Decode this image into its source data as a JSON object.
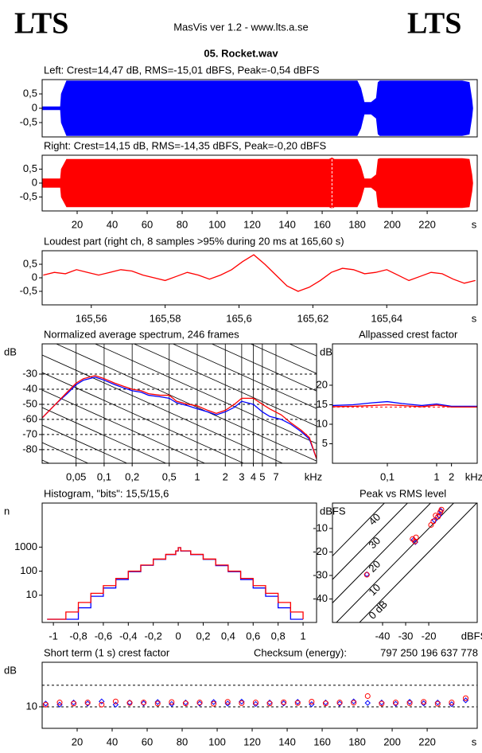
{
  "header": {
    "logo_left": "LTS",
    "app": "MasVis ver 1.2 - www.lts.a.se",
    "logo_right": "LTS",
    "file": "05. Rocket.wav"
  },
  "chart_data": [
    {
      "type": "envelope",
      "title": "Left: Crest=14,47 dB, RMS=-15,01 dBFS, Peak=-0,54 dBFS",
      "xlim": [
        0,
        248.6
      ],
      "ylim": [
        -1,
        1
      ],
      "yticks": [
        {
          "value": 0.5,
          "label": "0,5"
        },
        0,
        {
          "value": -0.5,
          "label": "-0,5"
        }
      ],
      "series": [
        {
          "color": "#0000ff",
          "x": [
            0,
            10.5,
            11,
            14,
            180,
            182,
            184,
            188,
            191,
            192,
            193,
            240,
            244,
            245.5,
            246
          ],
          "values": [
            0.05,
            0.05,
            0.5,
            0.95,
            0.95,
            0.7,
            0.2,
            0.2,
            0.35,
            0.9,
            0.95,
            0.95,
            0.9,
            0.3,
            0
          ]
        }
      ]
    },
    {
      "type": "envelope",
      "title": "Right: Crest=14,15 dB, RMS=-14,35 dBFS, Peak=-0,20 dBFS",
      "xlim": [
        0,
        248.6
      ],
      "ylim": [
        -1,
        1
      ],
      "yticks": [
        {
          "value": 0.5,
          "label": "0,5"
        },
        0,
        {
          "value": -0.5,
          "label": "-0,5"
        }
      ],
      "xticks": [
        20,
        40,
        60,
        80,
        100,
        120,
        140,
        160,
        180,
        200,
        220
      ],
      "x_unit": "s",
      "marker": 165.6,
      "series": [
        {
          "color": "#ff0000",
          "x": [
            0,
            10.5,
            11,
            14,
            164,
            165.6,
            167,
            180,
            182,
            184,
            188,
            191,
            192,
            193,
            240,
            244,
            245.5,
            246
          ],
          "values": [
            0.15,
            0.15,
            0.5,
            0.85,
            0.85,
            0.9,
            0.85,
            0.85,
            0.6,
            0.15,
            0.15,
            0.3,
            0.85,
            0.88,
            0.88,
            0.85,
            0.3,
            0
          ]
        }
      ]
    },
    {
      "type": "line",
      "title": "Loudest part (right ch, 8 samples >95% during 20 ms at 165,60 s)",
      "xlim": [
        165.5467,
        165.6645
      ],
      "ylim": [
        -1,
        1
      ],
      "yticks": [
        {
          "value": 0.5,
          "label": "0,5"
        },
        0,
        {
          "value": -0.5,
          "label": "-0,5"
        }
      ],
      "xticks": [
        {
          "value": 165.56,
          "label": "165,56"
        },
        {
          "value": 165.58,
          "label": "165,58"
        },
        {
          "value": 165.6,
          "label": "165,6"
        },
        {
          "value": 165.62,
          "label": "165,62"
        },
        {
          "value": 165.64,
          "label": "165,64"
        }
      ],
      "x_unit": "s",
      "series": [
        {
          "color": "#ff0000",
          "x": [
            165.547,
            165.55,
            165.553,
            165.556,
            165.559,
            165.562,
            165.565,
            165.568,
            165.571,
            165.574,
            165.577,
            165.58,
            165.583,
            165.586,
            165.589,
            165.592,
            165.595,
            165.598,
            165.601,
            165.604,
            165.607,
            165.61,
            165.613,
            165.616,
            165.619,
            165.622,
            165.625,
            165.628,
            165.631,
            165.634,
            165.637,
            165.64,
            165.643,
            165.646,
            165.649,
            165.652,
            165.655,
            165.658,
            165.661,
            165.664
          ],
          "values": [
            0.1,
            0.2,
            0.15,
            0.3,
            0.2,
            0.1,
            0.2,
            0.3,
            0.25,
            0.1,
            0,
            -0.1,
            0.05,
            0.2,
            0.1,
            -0.05,
            0.1,
            0.3,
            0.6,
            0.85,
            0.5,
            0.1,
            -0.3,
            -0.5,
            -0.35,
            -0.1,
            0.2,
            0.35,
            0.3,
            0.15,
            0.2,
            0.3,
            0.1,
            -0.1,
            0.05,
            0.2,
            0.15,
            -0.05,
            -0.2,
            -0.1
          ]
        }
      ]
    },
    {
      "type": "line",
      "title": "Normalized average spectrum, 246 frames",
      "y_label": "dB",
      "x_unit": "kHz",
      "xscale": "log",
      "xlim": [
        0.0216,
        19.1
      ],
      "ylim": [
        -89,
        -10
      ],
      "grid_x": true,
      "grid_y": "dashed",
      "diagonals": true,
      "yticks": [
        -30,
        -40,
        -50,
        -60,
        -70,
        -80
      ],
      "xticks": [
        {
          "value": 0.05,
          "label": "0,05"
        },
        {
          "value": 0.1,
          "label": "0,1"
        },
        {
          "value": 0.2,
          "label": "0,2"
        },
        {
          "value": 0.5,
          "label": "0,5"
        },
        1,
        2,
        3,
        4,
        5,
        7
      ],
      "series": [
        {
          "color": "#0000ff",
          "x": [
            0.0216,
            0.03,
            0.04,
            0.05,
            0.06,
            0.07,
            0.08,
            0.1,
            0.13,
            0.16,
            0.2,
            0.25,
            0.3,
            0.4,
            0.5,
            0.6,
            0.8,
            1,
            1.3,
            1.6,
            2,
            2.5,
            3,
            4,
            5,
            6,
            8,
            10,
            13,
            16,
            19.1
          ],
          "values": [
            -59,
            -50,
            -43,
            -37,
            -34,
            -33,
            -32,
            -34,
            -37,
            -39,
            -41,
            -42,
            -44,
            -45,
            -46,
            -49,
            -51,
            -53,
            -55,
            -57,
            -55,
            -52,
            -48,
            -50,
            -55,
            -58,
            -60,
            -63,
            -68,
            -73,
            -86
          ]
        },
        {
          "color": "#ff0000",
          "x": [
            0.0216,
            0.03,
            0.04,
            0.05,
            0.06,
            0.07,
            0.08,
            0.1,
            0.13,
            0.16,
            0.2,
            0.25,
            0.3,
            0.4,
            0.5,
            0.6,
            0.8,
            1,
            1.3,
            1.6,
            2,
            2.5,
            3,
            4,
            5,
            6,
            8,
            10,
            13,
            16,
            19.1
          ],
          "values": [
            -59,
            -50,
            -42,
            -36,
            -33,
            -32,
            -31,
            -33,
            -36,
            -38,
            -40,
            -41,
            -43,
            -44,
            -44,
            -48,
            -50,
            -51,
            -54,
            -56,
            -54,
            -50,
            -46,
            -46,
            -50,
            -53,
            -57,
            -62,
            -67,
            -72,
            -86
          ]
        }
      ]
    },
    {
      "type": "line",
      "title": "Allpassed crest factor",
      "y_label": "dB",
      "x_unit": "kHz",
      "xscale": "log",
      "xlim": [
        0.0077,
        6.66
      ],
      "ylim": [
        0,
        30.6
      ],
      "reference": 14.4,
      "yticks": [
        20,
        15,
        10,
        5
      ],
      "xticks": [
        {
          "value": 0.1,
          "label": "0,1"
        },
        1,
        2
      ],
      "series": [
        {
          "color": "#0000ff",
          "x": [
            0.0077,
            0.02,
            0.05,
            0.1,
            0.2,
            0.5,
            1,
            2,
            6.66
          ],
          "values": [
            14.8,
            15,
            15.5,
            15.8,
            15.3,
            14.8,
            15.2,
            14.6,
            14.6
          ]
        },
        {
          "color": "#ff0000",
          "x": [
            0.0077,
            0.02,
            0.05,
            0.1,
            0.2,
            0.5,
            1,
            2,
            6.66
          ],
          "values": [
            14.5,
            14.6,
            14.8,
            15,
            14.8,
            14.5,
            14.9,
            14.4,
            14.4
          ]
        }
      ]
    },
    {
      "type": "step",
      "title": "Histogram, \"bits\": 15,5/15,6",
      "y_label": "n",
      "yscale": "log",
      "xlim": [
        -1.09,
        1.108
      ],
      "ylim": [
        0.736,
        68000
      ],
      "yticks": [
        1000,
        100,
        10
      ],
      "xticks": [
        -1,
        {
          "value": -0.8,
          "label": "-0,8"
        },
        {
          "value": -0.6,
          "label": "-0,6"
        },
        {
          "value": -0.4,
          "label": "-0,4"
        },
        {
          "value": -0.2,
          "label": "-0,2"
        },
        0,
        {
          "value": 0.2,
          "label": "0,2"
        },
        {
          "value": 0.4,
          "label": "0,4"
        },
        {
          "value": 0.6,
          "label": "0,6"
        },
        {
          "value": 0.8,
          "label": "0,8"
        },
        1
      ],
      "series": [
        {
          "color": "#0000ff",
          "x": [
            -1.05,
            -0.9,
            -0.8,
            -0.7,
            -0.6,
            -0.5,
            -0.4,
            -0.3,
            -0.2,
            -0.1,
            -0.02,
            0,
            0.02,
            0.1,
            0.2,
            0.3,
            0.4,
            0.5,
            0.6,
            0.7,
            0.8,
            0.9,
            1
          ],
          "values": [
            1,
            1,
            3,
            9,
            20,
            45,
            95,
            175,
            310,
            490,
            690,
            950,
            690,
            490,
            310,
            170,
            95,
            45,
            20,
            9,
            3,
            1,
            1
          ]
        },
        {
          "color": "#ff0000",
          "x": [
            -1.05,
            -0.9,
            -0.8,
            -0.7,
            -0.6,
            -0.5,
            -0.4,
            -0.3,
            -0.2,
            -0.1,
            -0.02,
            0,
            0.02,
            0.1,
            0.2,
            0.3,
            0.4,
            0.5,
            0.6,
            0.7,
            0.8,
            0.9,
            1
          ],
          "values": [
            1,
            2,
            5,
            12,
            25,
            50,
            100,
            180,
            320,
            500,
            700,
            950,
            700,
            500,
            320,
            180,
            100,
            50,
            25,
            12,
            5,
            2,
            1
          ]
        }
      ]
    },
    {
      "type": "scatter",
      "title": "Peak vs RMS level",
      "y_label": "dBFS",
      "x_unit": "dBFS",
      "xlim": [
        -61.7,
        1
      ],
      "ylim": [
        -50,
        0.8
      ],
      "yticks": [
        -10,
        -20,
        -30,
        -40
      ],
      "xticks": [
        -40,
        -30,
        -20
      ],
      "diagonal_labels": [
        {
          "value": 40,
          "label": "40"
        },
        {
          "value": 30,
          "label": "30"
        },
        {
          "value": 20,
          "label": "20"
        },
        {
          "value": 10,
          "label": "10"
        },
        {
          "value": 0,
          "label": "0 dB"
        }
      ],
      "series": [
        {
          "color": "#0000ff",
          "symbol": "diamond",
          "x": [
            -46.8,
            -26.5,
            -25.8,
            -17.5,
            -15.5,
            -14.8
          ],
          "values": [
            -29.5,
            -14.8,
            -15.8,
            -6.5,
            -4.5,
            -2.5
          ]
        },
        {
          "color": "#ff0000",
          "symbol": "circle",
          "x": [
            -46.8,
            -27,
            -26,
            -25.5,
            -18,
            -16,
            -15,
            -14.5,
            -17,
            -19
          ],
          "values": [
            -29.7,
            -14.5,
            -15.5,
            -13.8,
            -7,
            -5,
            -3,
            -2,
            -4.5,
            -8.5
          ]
        }
      ]
    },
    {
      "type": "scatter",
      "title": "Short term (1 s) crest factor",
      "y_label": "dB",
      "x_unit": "s",
      "checksum_label": "Checksum (energy):",
      "checksum": "797 250 196 637 778",
      "xlim": [
        0,
        248.6
      ],
      "ylim": [
        0,
        30.7
      ],
      "dashed_lines": [
        10,
        20
      ],
      "yticks": [
        10
      ],
      "xticks": [
        20,
        40,
        60,
        80,
        100,
        120,
        140,
        160,
        180,
        200,
        220
      ],
      "series": [
        {
          "color": "#0000ff",
          "symbol": "diamond",
          "x": [
            2,
            10,
            18,
            26,
            34,
            42,
            50,
            58,
            66,
            74,
            82,
            90,
            98,
            106,
            114,
            122,
            130,
            138,
            146,
            154,
            162,
            170,
            178,
            186,
            194,
            202,
            210,
            218,
            226,
            234,
            242
          ],
          "values": [
            11.5,
            11,
            12,
            11.5,
            12.5,
            11,
            12,
            11.6,
            12.2,
            11.3,
            12,
            11.5,
            12.2,
            11.5,
            12.4,
            11.3,
            12,
            11.6,
            12.3,
            11.2,
            12,
            11.5,
            12.5,
            11.8,
            12,
            11.4,
            12.3,
            11.6,
            12,
            11.2,
            13
          ]
        },
        {
          "color": "#ff0000",
          "symbol": "circle",
          "x": [
            2,
            10,
            18,
            26,
            34,
            42,
            50,
            58,
            66,
            74,
            82,
            90,
            98,
            106,
            114,
            122,
            130,
            138,
            146,
            154,
            162,
            170,
            178,
            186,
            194,
            202,
            210,
            218,
            226,
            234,
            242
          ],
          "values": [
            11,
            12,
            11.5,
            12,
            11,
            12.5,
            11.8,
            12,
            11.5,
            12.2,
            11.6,
            12,
            11.4,
            12.3,
            11.7,
            12,
            11.5,
            12.1,
            11.8,
            12.4,
            11.6,
            12,
            11.9,
            15,
            11.5,
            12,
            11.7,
            12.3,
            11.4,
            12,
            14
          ]
        }
      ]
    }
  ]
}
